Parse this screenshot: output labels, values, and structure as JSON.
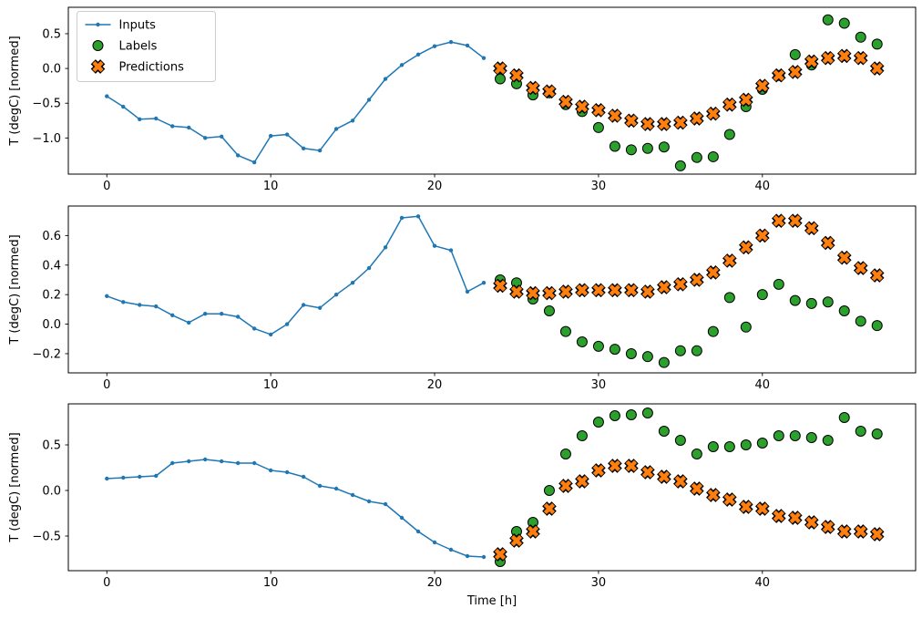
{
  "figure": {
    "x_label": "Time [h]",
    "y_label": "T (degC) [normed]"
  },
  "colors": {
    "inputs": "#1f77b4",
    "labels_fill": "#2ca02c",
    "predictions_fill": "#ff7f0e",
    "marker_edge": "#000000",
    "axes_frame": "#000000",
    "legend_border": "#cccccc"
  },
  "legend": {
    "position": "upper-left-first-subplot",
    "entries": [
      {
        "label": "Inputs",
        "type": "line-dot",
        "color": "#1f77b4"
      },
      {
        "label": "Labels",
        "type": "circle",
        "fill": "#2ca02c",
        "edge": "#000000"
      },
      {
        "label": "Predictions",
        "type": "x",
        "fill": "#ff7f0e",
        "edge": "#000000"
      }
    ]
  },
  "chart_data": [
    {
      "type": "line",
      "title": "",
      "xlabel": "",
      "ylabel": "T (degC) [normed]",
      "xlim": [
        -2.35,
        49.35
      ],
      "ylim": [
        -1.52,
        0.88
      ],
      "xticks": [
        0,
        10,
        20,
        30,
        40
      ],
      "xtick_labels": [
        "0",
        "10",
        "20",
        "30",
        "40"
      ],
      "yticks": [
        0.5,
        0.0,
        -0.5,
        -1.0
      ],
      "ytick_labels": [
        "0.5",
        "0.0",
        "−0.5",
        "−1.0"
      ],
      "grid": false,
      "series": [
        {
          "name": "Inputs",
          "style": "line",
          "color": "#1f77b4",
          "x_start": 0,
          "x_step": 1,
          "values": [
            -0.4,
            -0.55,
            -0.73,
            -0.72,
            -0.83,
            -0.85,
            -1.0,
            -0.98,
            -1.25,
            -1.35,
            -0.97,
            -0.95,
            -1.15,
            -1.18,
            -0.87,
            -0.75,
            -0.45,
            -0.15,
            0.05,
            0.2,
            0.32,
            0.38,
            0.33,
            0.15
          ]
        },
        {
          "name": "Labels",
          "style": "circle",
          "fill": "#2ca02c",
          "edge": "#000000",
          "x_start": 24,
          "x_step": 1,
          "values": [
            -0.15,
            -0.22,
            -0.38,
            -0.35,
            -0.52,
            -0.62,
            -0.85,
            -1.12,
            -1.17,
            -1.15,
            -1.13,
            -1.4,
            -1.28,
            -1.27,
            -0.95,
            -0.55,
            -0.3,
            -0.1,
            0.2,
            0.05,
            0.7,
            0.65,
            0.45,
            0.35
          ]
        },
        {
          "name": "Predictions",
          "style": "x",
          "fill": "#ff7f0e",
          "edge": "#000000",
          "x_start": 24,
          "x_step": 1,
          "values": [
            0.0,
            -0.1,
            -0.28,
            -0.33,
            -0.48,
            -0.55,
            -0.6,
            -0.68,
            -0.75,
            -0.8,
            -0.8,
            -0.78,
            -0.72,
            -0.65,
            -0.52,
            -0.45,
            -0.25,
            -0.1,
            -0.05,
            0.1,
            0.15,
            0.18,
            0.15,
            0.0
          ]
        }
      ]
    },
    {
      "type": "line",
      "title": "",
      "xlabel": "",
      "ylabel": "T (degC) [normed]",
      "xlim": [
        -2.35,
        49.35
      ],
      "ylim": [
        -0.33,
        0.8
      ],
      "xticks": [
        0,
        10,
        20,
        30,
        40
      ],
      "xtick_labels": [
        "0",
        "10",
        "20",
        "30",
        "40"
      ],
      "yticks": [
        0.6,
        0.4,
        0.2,
        0.0,
        -0.2
      ],
      "ytick_labels": [
        "0.6",
        "0.4",
        "0.2",
        "0.0",
        "−0.2"
      ],
      "grid": false,
      "series": [
        {
          "name": "Inputs",
          "style": "line",
          "color": "#1f77b4",
          "x_start": 0,
          "x_step": 1,
          "values": [
            0.19,
            0.15,
            0.13,
            0.12,
            0.06,
            0.01,
            0.07,
            0.07,
            0.05,
            -0.03,
            -0.07,
            0.0,
            0.13,
            0.11,
            0.2,
            0.28,
            0.38,
            0.52,
            0.72,
            0.73,
            0.53,
            0.5,
            0.22,
            0.28
          ]
        },
        {
          "name": "Labels",
          "style": "circle",
          "fill": "#2ca02c",
          "edge": "#000000",
          "x_start": 24,
          "x_step": 1,
          "values": [
            0.3,
            0.28,
            0.17,
            0.09,
            -0.05,
            -0.12,
            -0.15,
            -0.17,
            -0.2,
            -0.22,
            -0.26,
            -0.18,
            -0.18,
            -0.05,
            0.18,
            -0.02,
            0.2,
            0.27,
            0.16,
            0.14,
            0.15,
            0.09,
            0.02,
            -0.01
          ]
        },
        {
          "name": "Predictions",
          "style": "x",
          "fill": "#ff7f0e",
          "edge": "#000000",
          "x_start": 24,
          "x_step": 1,
          "values": [
            0.26,
            0.22,
            0.21,
            0.21,
            0.22,
            0.23,
            0.23,
            0.23,
            0.23,
            0.22,
            0.25,
            0.27,
            0.3,
            0.35,
            0.43,
            0.52,
            0.6,
            0.7,
            0.7,
            0.65,
            0.55,
            0.45,
            0.38,
            0.33
          ]
        }
      ]
    },
    {
      "type": "line",
      "title": "",
      "xlabel": "Time [h]",
      "ylabel": "T (degC) [normed]",
      "xlim": [
        -2.35,
        49.35
      ],
      "ylim": [
        -0.88,
        0.95
      ],
      "xticks": [
        0,
        10,
        20,
        30,
        40
      ],
      "xtick_labels": [
        "0",
        "10",
        "20",
        "30",
        "40"
      ],
      "yticks": [
        0.5,
        0.0,
        -0.5
      ],
      "ytick_labels": [
        "0.5",
        "0.0",
        "−0.5"
      ],
      "grid": false,
      "series": [
        {
          "name": "Inputs",
          "style": "line",
          "color": "#1f77b4",
          "x_start": 0,
          "x_step": 1,
          "values": [
            0.13,
            0.14,
            0.15,
            0.16,
            0.3,
            0.32,
            0.34,
            0.32,
            0.3,
            0.3,
            0.22,
            0.2,
            0.15,
            0.05,
            0.02,
            -0.05,
            -0.12,
            -0.15,
            -0.3,
            -0.45,
            -0.57,
            -0.65,
            -0.72,
            -0.73
          ]
        },
        {
          "name": "Labels",
          "style": "circle",
          "fill": "#2ca02c",
          "edge": "#000000",
          "x_start": 24,
          "x_step": 1,
          "values": [
            -0.78,
            -0.45,
            -0.35,
            0.0,
            0.4,
            0.6,
            0.75,
            0.82,
            0.83,
            0.85,
            0.65,
            0.55,
            0.4,
            0.48,
            0.48,
            0.5,
            0.52,
            0.6,
            0.6,
            0.58,
            0.55,
            0.8,
            0.65,
            0.62
          ]
        },
        {
          "name": "Predictions",
          "style": "x",
          "fill": "#ff7f0e",
          "edge": "#000000",
          "x_start": 24,
          "x_step": 1,
          "values": [
            -0.7,
            -0.55,
            -0.45,
            -0.2,
            0.05,
            0.1,
            0.22,
            0.27,
            0.27,
            0.2,
            0.15,
            0.1,
            0.02,
            -0.05,
            -0.1,
            -0.18,
            -0.2,
            -0.28,
            -0.3,
            -0.35,
            -0.4,
            -0.45,
            -0.45,
            -0.48
          ]
        }
      ]
    }
  ]
}
